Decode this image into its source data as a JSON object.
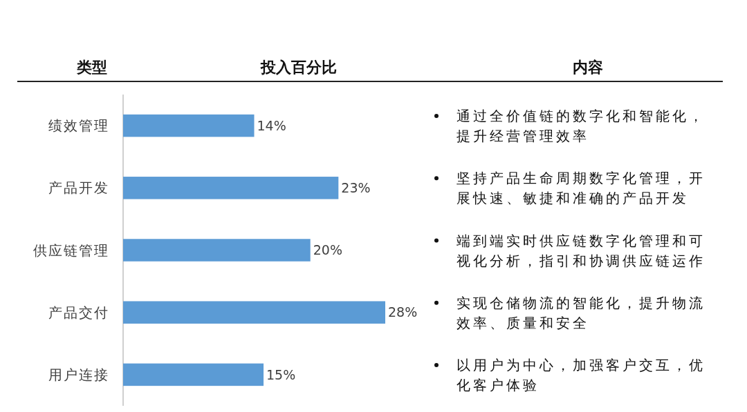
{
  "chart_data": {
    "type": "bar",
    "orientation": "horizontal",
    "ylabel": "类型",
    "title": "投入百分比",
    "categories": [
      "绩效管理",
      "产品开发",
      "供应链管理",
      "产品交付",
      "用户连接"
    ],
    "values": [
      14,
      23,
      20,
      28,
      15
    ],
    "value_labels": [
      "14%",
      "23%",
      "20%",
      "28%",
      "15%"
    ],
    "color": "#5b9bd5",
    "annotations": [
      "内容",
      "通过全价值链的数字化和智能化，提升经营管理效率",
      "坚持产品生命周期数字化管理，开展快速、敏捷和准确的产品开发",
      "端到端实时供应链数字化管理和可视化分析，指引和协调供应链运作",
      "实现仓储物流的智能化，提升物流效率、质量和安全",
      "以用户为中心，加强客户交互，优化客户体验"
    ]
  }
}
